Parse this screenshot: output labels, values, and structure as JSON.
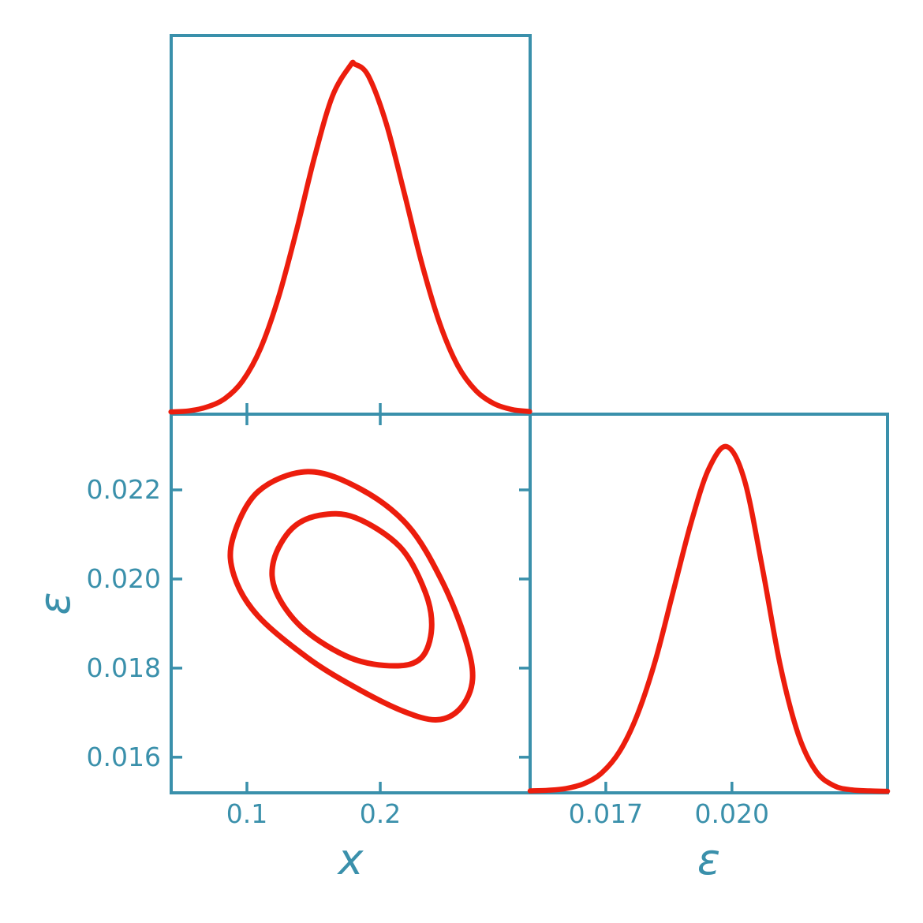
{
  "figure": {
    "kind": "corner-plot",
    "background": "#ffffff"
  },
  "style": {
    "axis_color": "#3a90ab",
    "text_color": "#3a90ab",
    "curve_color": "#ec1d0d",
    "border_width": 4,
    "tick_width": 3.5,
    "tick_length": 14,
    "curve_width": 6.5,
    "contour_width": 7
  },
  "chart_data": [
    {
      "id": "x-marginal",
      "type": "line",
      "role": "1D marginal posterior of x",
      "xlabel": "",
      "ylabel": "",
      "x_range": [
        0.0432,
        0.3124
      ],
      "peak_height_frac": 0.92,
      "xticks": [
        {
          "value": 0.1,
          "label": ""
        },
        {
          "value": 0.2,
          "label": ""
        }
      ],
      "curve": [
        [
          0.043,
          0.002
        ],
        [
          0.0565,
          0.005
        ],
        [
          0.0699,
          0.016
        ],
        [
          0.0834,
          0.04
        ],
        [
          0.0968,
          0.091
        ],
        [
          0.1103,
          0.185
        ],
        [
          0.1237,
          0.331
        ],
        [
          0.1372,
          0.523
        ],
        [
          0.1506,
          0.732
        ],
        [
          0.1641,
          0.908
        ],
        [
          0.1775,
          0.996
        ],
        [
          0.181,
          1.0
        ],
        [
          0.191,
          0.967
        ],
        [
          0.2044,
          0.831
        ],
        [
          0.2179,
          0.632
        ],
        [
          0.2313,
          0.426
        ],
        [
          0.2448,
          0.254
        ],
        [
          0.2582,
          0.134
        ],
        [
          0.2717,
          0.063
        ],
        [
          0.2851,
          0.026
        ],
        [
          0.2986,
          0.009
        ],
        [
          0.312,
          0.003
        ]
      ]
    },
    {
      "id": "joint-contour",
      "type": "contour",
      "role": "2D joint posterior of x and epsilon, 68% and 95% credible contours",
      "xlabel": "x",
      "ylabel": "ε",
      "x_range": [
        0.0432,
        0.3124
      ],
      "y_range": [
        0.0152,
        0.0237
      ],
      "xticks": [
        {
          "value": 0.1,
          "label": "0.1"
        },
        {
          "value": 0.2,
          "label": "0.2"
        }
      ],
      "yticks": [
        {
          "value": 0.016,
          "label": "0.016"
        },
        {
          "value": 0.018,
          "label": "0.018"
        },
        {
          "value": 0.02,
          "label": "0.020"
        },
        {
          "value": 0.022,
          "label": "0.022"
        }
      ],
      "contours": {
        "outer": [
          [
            0.1456,
            0.02241
          ],
          [
            0.1852,
            0.02202
          ],
          [
            0.2207,
            0.0212
          ],
          [
            0.2462,
            0.01996
          ],
          [
            0.2639,
            0.01864
          ],
          [
            0.2692,
            0.01775
          ],
          [
            0.2604,
            0.01711
          ],
          [
            0.2426,
            0.01684
          ],
          [
            0.2166,
            0.01704
          ],
          [
            0.1811,
            0.01757
          ],
          [
            0.1456,
            0.01823
          ],
          [
            0.1083,
            0.01917
          ],
          [
            0.0905,
            0.02006
          ],
          [
            0.0893,
            0.0209
          ],
          [
            0.1083,
            0.02196
          ]
        ],
        "inner": [
          [
            0.1544,
            0.02143
          ],
          [
            0.1811,
            0.02138
          ],
          [
            0.2148,
            0.02072
          ],
          [
            0.2337,
            0.01971
          ],
          [
            0.2385,
            0.01889
          ],
          [
            0.2308,
            0.01823
          ],
          [
            0.2107,
            0.01805
          ],
          [
            0.1775,
            0.01823
          ],
          [
            0.142,
            0.01889
          ],
          [
            0.1219,
            0.01971
          ],
          [
            0.1201,
            0.02042
          ],
          [
            0.1337,
            0.02113
          ]
        ]
      }
    },
    {
      "id": "epsilon-marginal",
      "type": "line",
      "role": "1D marginal posterior of epsilon",
      "xlabel": "ε",
      "ylabel": "",
      "x_range": [
        0.0152,
        0.0237
      ],
      "peak_height_frac": 0.91,
      "xticks": [
        {
          "value": 0.017,
          "label": "0.017"
        },
        {
          "value": 0.02,
          "label": "0.020"
        }
      ],
      "curve": [
        [
          0.0152,
          0.001
        ],
        [
          0.01563,
          0.003
        ],
        [
          0.01605,
          0.008
        ],
        [
          0.01648,
          0.022
        ],
        [
          0.0169,
          0.053
        ],
        [
          0.01733,
          0.116
        ],
        [
          0.01775,
          0.222
        ],
        [
          0.01818,
          0.38
        ],
        [
          0.0186,
          0.578
        ],
        [
          0.01903,
          0.78
        ],
        [
          0.01945,
          0.936
        ],
        [
          0.01988,
          1.0
        ],
        [
          0.0203,
          0.902
        ],
        [
          0.02073,
          0.644
        ],
        [
          0.02115,
          0.365
        ],
        [
          0.02158,
          0.164
        ],
        [
          0.022,
          0.058
        ],
        [
          0.02243,
          0.016
        ],
        [
          0.02285,
          0.004
        ],
        [
          0.02328,
          0.001
        ],
        [
          0.0237,
          0.0
        ]
      ]
    }
  ]
}
